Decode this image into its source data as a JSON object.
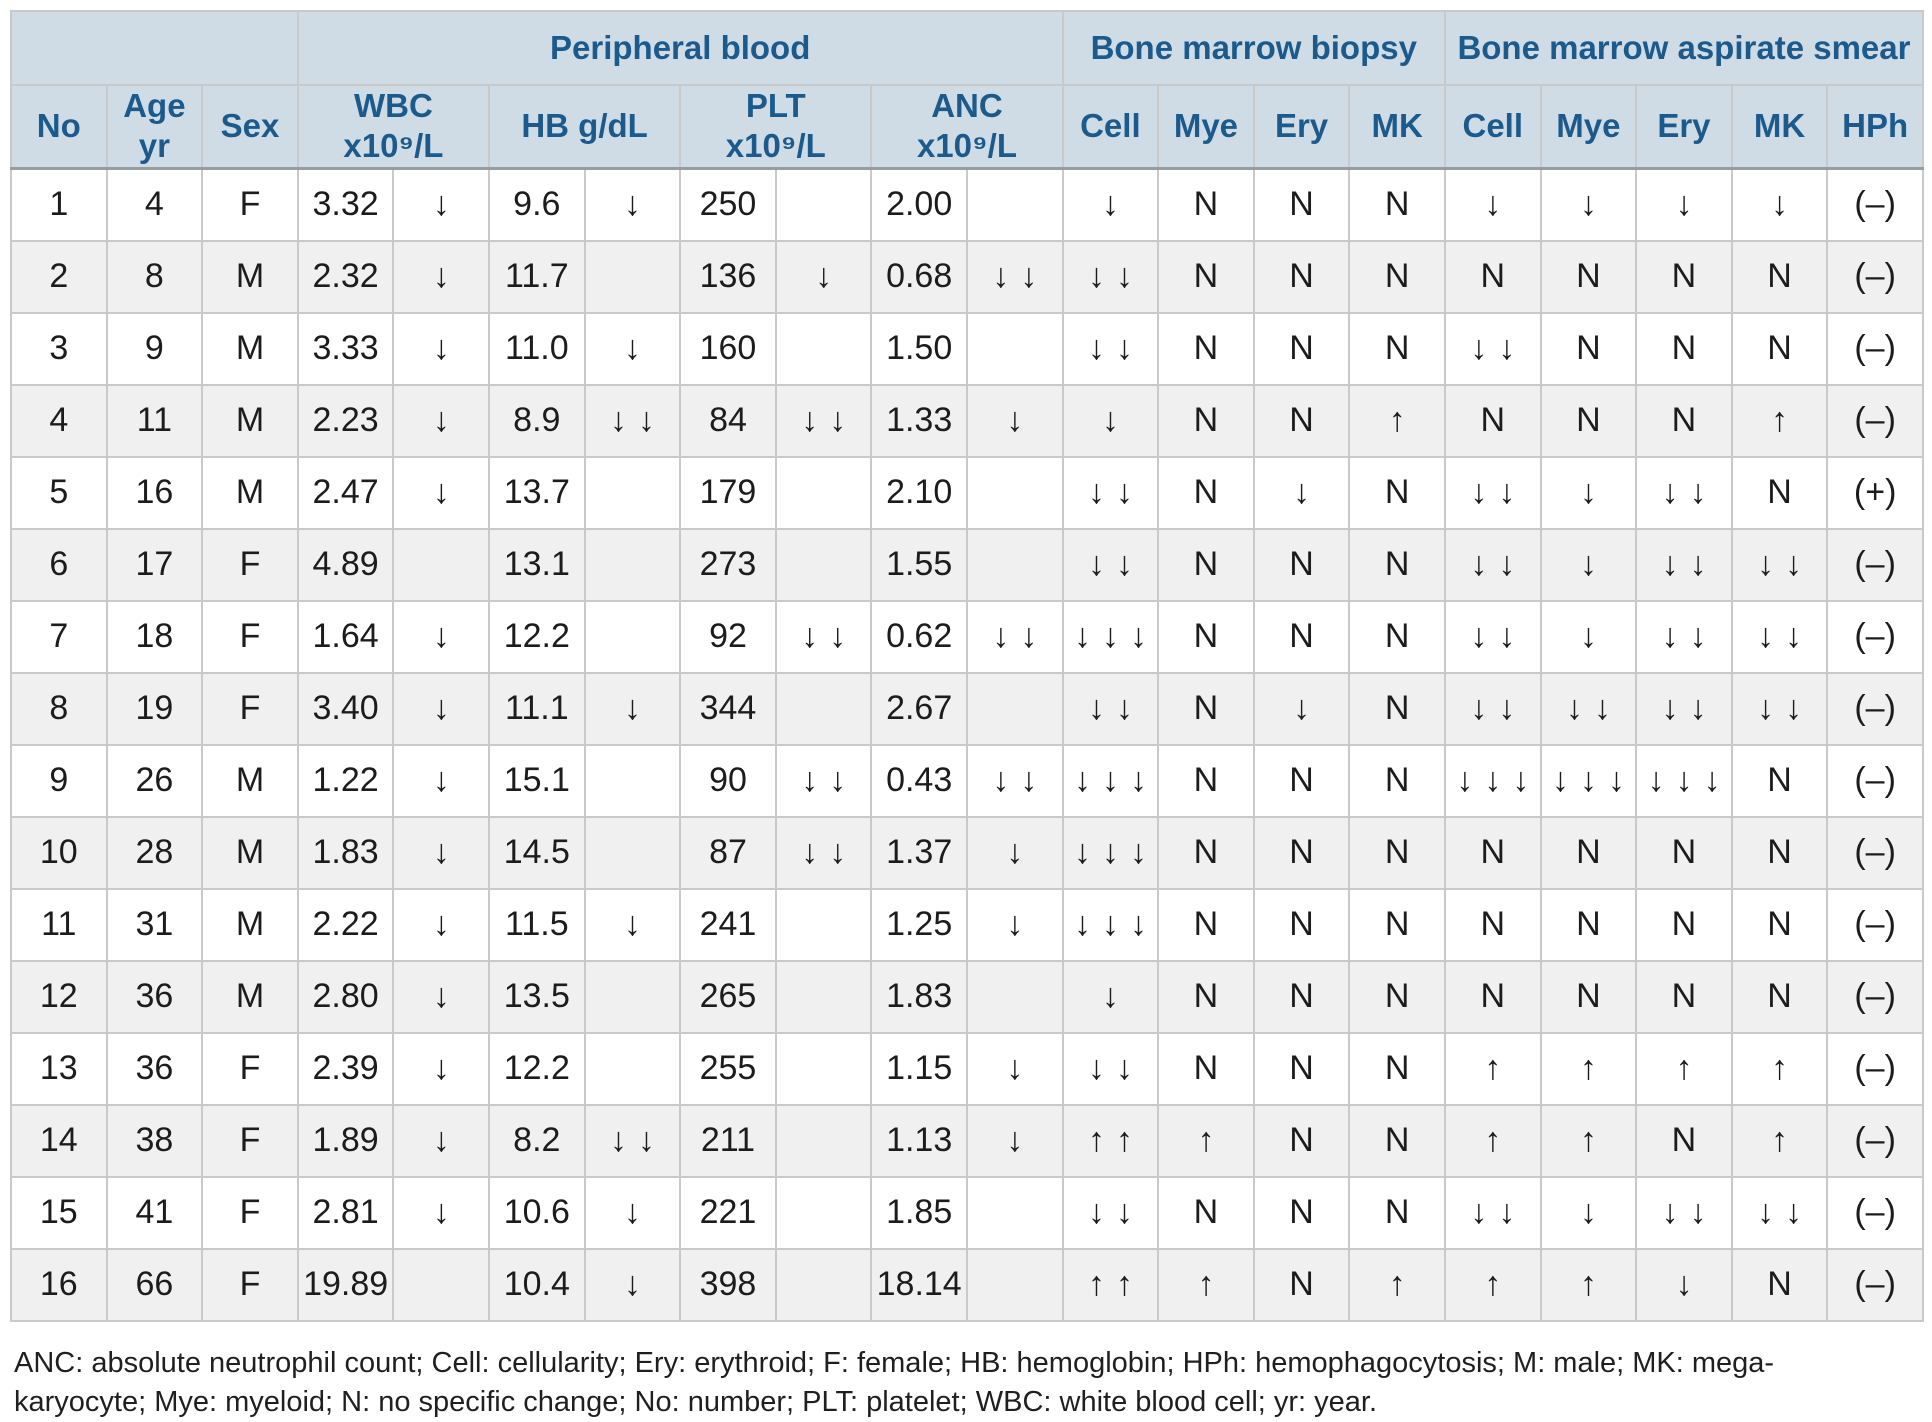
{
  "table": {
    "groups": [
      {
        "label": "",
        "span": 3
      },
      {
        "label": "Peripheral blood",
        "span": 8
      },
      {
        "label": "Bone marrow biopsy",
        "span": 4
      },
      {
        "label": "Bone marrow aspirate smear",
        "span": 5
      }
    ],
    "sub_headers": {
      "no": "No",
      "age": "Age yr",
      "sex": "Sex",
      "wbc": {
        "label": "WBC",
        "unit": "x10⁹/L"
      },
      "hb": {
        "label": "HB g/dL",
        "unit": ""
      },
      "plt": {
        "label": "PLT",
        "unit": "x10⁹/L"
      },
      "anc": {
        "label": "ANC",
        "unit": "x10⁹/L"
      },
      "biopsy_cell": "Cell",
      "biopsy_mye": "Mye",
      "biopsy_ery": "Ery",
      "biopsy_mk": "MK",
      "smear_cell": "Cell",
      "smear_mye": "Mye",
      "smear_ery": "Ery",
      "smear_mk": "MK",
      "hph": "HPh"
    },
    "rows": [
      {
        "no": "1",
        "age": "4",
        "sex": "F",
        "wbc": "3.32",
        "wbc_flag": "↓",
        "hb": "9.6",
        "hb_flag": "↓",
        "plt": "250",
        "plt_flag": "",
        "anc": "2.00",
        "anc_flag": "",
        "bm_cell": "↓",
        "bm_mye": "N",
        "bm_ery": "N",
        "bm_mk": "N",
        "sm_cell": "↓",
        "sm_mye": "↓",
        "sm_ery": "↓",
        "sm_mk": "↓",
        "hph": "(–)"
      },
      {
        "no": "2",
        "age": "8",
        "sex": "M",
        "wbc": "2.32",
        "wbc_flag": "↓",
        "hb": "11.7",
        "hb_flag": "",
        "plt": "136",
        "plt_flag": "↓",
        "anc": "0.68",
        "anc_flag": "↓↓",
        "bm_cell": "↓↓",
        "bm_mye": "N",
        "bm_ery": "N",
        "bm_mk": "N",
        "sm_cell": "N",
        "sm_mye": "N",
        "sm_ery": "N",
        "sm_mk": "N",
        "hph": "(–)"
      },
      {
        "no": "3",
        "age": "9",
        "sex": "M",
        "wbc": "3.33",
        "wbc_flag": "↓",
        "hb": "11.0",
        "hb_flag": "↓",
        "plt": "160",
        "plt_flag": "",
        "anc": "1.50",
        "anc_flag": "",
        "bm_cell": "↓↓",
        "bm_mye": "N",
        "bm_ery": "N",
        "bm_mk": "N",
        "sm_cell": "↓↓",
        "sm_mye": "N",
        "sm_ery": "N",
        "sm_mk": "N",
        "hph": "(–)"
      },
      {
        "no": "4",
        "age": "11",
        "sex": "M",
        "wbc": "2.23",
        "wbc_flag": "↓",
        "hb": "8.9",
        "hb_flag": "↓↓",
        "plt": "84",
        "plt_flag": "↓↓",
        "anc": "1.33",
        "anc_flag": "↓",
        "bm_cell": "↓",
        "bm_mye": "N",
        "bm_ery": "N",
        "bm_mk": "↑",
        "sm_cell": "N",
        "sm_mye": "N",
        "sm_ery": "N",
        "sm_mk": "↑",
        "hph": "(–)"
      },
      {
        "no": "5",
        "age": "16",
        "sex": "M",
        "wbc": "2.47",
        "wbc_flag": "↓",
        "hb": "13.7",
        "hb_flag": "",
        "plt": "179",
        "plt_flag": "",
        "anc": "2.10",
        "anc_flag": "",
        "bm_cell": "↓↓",
        "bm_mye": "N",
        "bm_ery": "↓",
        "bm_mk": "N",
        "sm_cell": "↓↓",
        "sm_mye": "↓",
        "sm_ery": "↓↓",
        "sm_mk": "N",
        "hph": "(+)"
      },
      {
        "no": "6",
        "age": "17",
        "sex": "F",
        "wbc": "4.89",
        "wbc_flag": "",
        "hb": "13.1",
        "hb_flag": "",
        "plt": "273",
        "plt_flag": "",
        "anc": "1.55",
        "anc_flag": "",
        "bm_cell": "↓↓",
        "bm_mye": "N",
        "bm_ery": "N",
        "bm_mk": "N",
        "sm_cell": "↓↓",
        "sm_mye": "↓",
        "sm_ery": "↓↓",
        "sm_mk": "↓↓",
        "hph": "(–)"
      },
      {
        "no": "7",
        "age": "18",
        "sex": "F",
        "wbc": "1.64",
        "wbc_flag": "↓",
        "hb": "12.2",
        "hb_flag": "",
        "plt": "92",
        "plt_flag": "↓↓",
        "anc": "0.62",
        "anc_flag": "↓↓",
        "bm_cell": "↓↓↓",
        "bm_mye": "N",
        "bm_ery": "N",
        "bm_mk": "N",
        "sm_cell": "↓↓",
        "sm_mye": "↓",
        "sm_ery": "↓↓",
        "sm_mk": "↓↓",
        "hph": "(–)"
      },
      {
        "no": "8",
        "age": "19",
        "sex": "F",
        "wbc": "3.40",
        "wbc_flag": "↓",
        "hb": "11.1",
        "hb_flag": "↓",
        "plt": "344",
        "plt_flag": "",
        "anc": "2.67",
        "anc_flag": "",
        "bm_cell": "↓↓",
        "bm_mye": "N",
        "bm_ery": "↓",
        "bm_mk": "N",
        "sm_cell": "↓↓",
        "sm_mye": "↓↓",
        "sm_ery": "↓↓",
        "sm_mk": "↓↓",
        "hph": "(–)"
      },
      {
        "no": "9",
        "age": "26",
        "sex": "M",
        "wbc": "1.22",
        "wbc_flag": "↓",
        "hb": "15.1",
        "hb_flag": "",
        "plt": "90",
        "plt_flag": "↓↓",
        "anc": "0.43",
        "anc_flag": "↓↓",
        "bm_cell": "↓↓↓",
        "bm_mye": "N",
        "bm_ery": "N",
        "bm_mk": "N",
        "sm_cell": "↓↓↓",
        "sm_mye": "↓↓↓",
        "sm_ery": "↓↓↓",
        "sm_mk": "N",
        "hph": "(–)"
      },
      {
        "no": "10",
        "age": "28",
        "sex": "M",
        "wbc": "1.83",
        "wbc_flag": "↓",
        "hb": "14.5",
        "hb_flag": "",
        "plt": "87",
        "plt_flag": "↓↓",
        "anc": "1.37",
        "anc_flag": "↓",
        "bm_cell": "↓↓↓",
        "bm_mye": "N",
        "bm_ery": "N",
        "bm_mk": "N",
        "sm_cell": "N",
        "sm_mye": "N",
        "sm_ery": "N",
        "sm_mk": "N",
        "hph": "(–)"
      },
      {
        "no": "11",
        "age": "31",
        "sex": "M",
        "wbc": "2.22",
        "wbc_flag": "↓",
        "hb": "11.5",
        "hb_flag": "↓",
        "plt": "241",
        "plt_flag": "",
        "anc": "1.25",
        "anc_flag": "↓",
        "bm_cell": "↓↓↓",
        "bm_mye": "N",
        "bm_ery": "N",
        "bm_mk": "N",
        "sm_cell": "N",
        "sm_mye": "N",
        "sm_ery": "N",
        "sm_mk": "N",
        "hph": "(–)"
      },
      {
        "no": "12",
        "age": "36",
        "sex": "M",
        "wbc": "2.80",
        "wbc_flag": "↓",
        "hb": "13.5",
        "hb_flag": "",
        "plt": "265",
        "plt_flag": "",
        "anc": "1.83",
        "anc_flag": "",
        "bm_cell": "↓",
        "bm_mye": "N",
        "bm_ery": "N",
        "bm_mk": "N",
        "sm_cell": "N",
        "sm_mye": "N",
        "sm_ery": "N",
        "sm_mk": "N",
        "hph": "(–)"
      },
      {
        "no": "13",
        "age": "36",
        "sex": "F",
        "wbc": "2.39",
        "wbc_flag": "↓",
        "hb": "12.2",
        "hb_flag": "",
        "plt": "255",
        "plt_flag": "",
        "anc": "1.15",
        "anc_flag": "↓",
        "bm_cell": "↓↓",
        "bm_mye": "N",
        "bm_ery": "N",
        "bm_mk": "N",
        "sm_cell": "↑",
        "sm_mye": "↑",
        "sm_ery": "↑",
        "sm_mk": "↑",
        "hph": "(–)"
      },
      {
        "no": "14",
        "age": "38",
        "sex": "F",
        "wbc": "1.89",
        "wbc_flag": "↓",
        "hb": "8.2",
        "hb_flag": "↓↓",
        "plt": "211",
        "plt_flag": "",
        "anc": "1.13",
        "anc_flag": "↓",
        "bm_cell": "↑↑",
        "bm_mye": "↑",
        "bm_ery": "N",
        "bm_mk": "N",
        "sm_cell": "↑",
        "sm_mye": "↑",
        "sm_ery": "N",
        "sm_mk": "↑",
        "hph": "(–)"
      },
      {
        "no": "15",
        "age": "41",
        "sex": "F",
        "wbc": "2.81",
        "wbc_flag": "↓",
        "hb": "10.6",
        "hb_flag": "↓",
        "plt": "221",
        "plt_flag": "",
        "anc": "1.85",
        "anc_flag": "",
        "bm_cell": "↓↓",
        "bm_mye": "N",
        "bm_ery": "N",
        "bm_mk": "N",
        "sm_cell": "↓↓",
        "sm_mye": "↓",
        "sm_ery": "↓↓",
        "sm_mk": "↓↓",
        "hph": "(–)"
      },
      {
        "no": "16",
        "age": "66",
        "sex": "F",
        "wbc": "19.89",
        "wbc_flag": "",
        "hb": "10.4",
        "hb_flag": "↓",
        "plt": "398",
        "plt_flag": "",
        "anc": "18.14",
        "anc_flag": "",
        "bm_cell": "↑↑",
        "bm_mye": "↑",
        "bm_ery": "N",
        "bm_mk": "↑",
        "sm_cell": "↑",
        "sm_mye": "↑",
        "sm_ery": "↓",
        "sm_mk": "N",
        "hph": "(–)"
      }
    ]
  },
  "footnote": {
    "line1": "ANC: absolute neutrophil count; Cell: cellularity; Ery: erythroid; F: female; HB: hemoglobin; HPh: hemophagocytosis; M: male; MK: mega-",
    "line2": "karyocyte; Mye: myeloid; N: no specific change; No: number; PLT: platelet; WBC: white blood cell; yr: year."
  },
  "colors": {
    "header_bg": "#cfdce6",
    "header_text": "#1d5a8c",
    "stripe": "#f0f0f0",
    "border": "#c9c9c9",
    "body_text": "#1c1c1c"
  }
}
